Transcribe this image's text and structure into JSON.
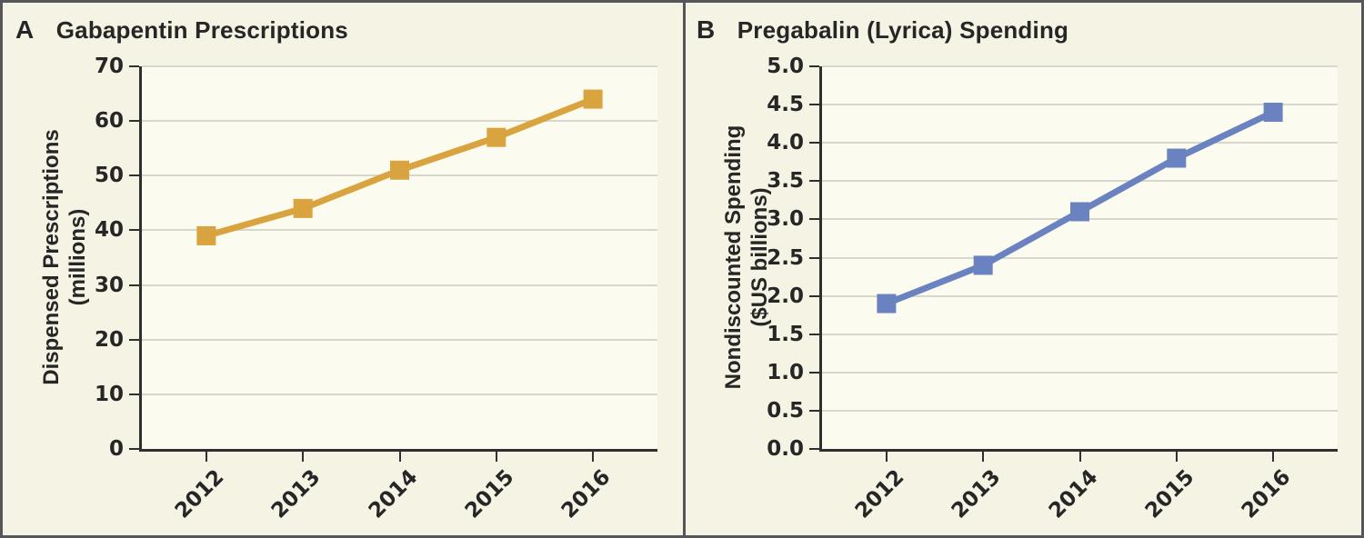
{
  "figure": {
    "panels": [
      {
        "label": "A",
        "title": "Gabapentin Prescriptions"
      },
      {
        "label": "B",
        "title": "Pregabalin (Lyrica) Spending"
      }
    ]
  },
  "colors": {
    "background": "#f5f3e4",
    "plot_background": "#fcfbef",
    "border": "#55565a",
    "axis": "#2f2f2f",
    "gridline": "#d8d7ce",
    "text": "#262626",
    "gabapentin_line": "#d9a43f",
    "pregabalin_line": "#6a82bf"
  },
  "chart_data": [
    {
      "type": "line",
      "panel_label": "A",
      "title": "Gabapentin Prescriptions",
      "x": [
        2012,
        2013,
        2014,
        2015,
        2016
      ],
      "values": [
        39,
        44,
        51,
        57,
        64
      ],
      "xlabel": "",
      "ylabel": "Dispensed Prescriptions (millions)",
      "ylabel_lines": [
        "Dispensed Prescriptions",
        "(millions)"
      ],
      "ylim": [
        0,
        70
      ],
      "ytick_step": 10,
      "ytick_decimals": 0,
      "grid": true,
      "legend": "none",
      "line_color": "#d9a43f",
      "marker": "square"
    },
    {
      "type": "line",
      "panel_label": "B",
      "title": "Pregabalin (Lyrica) Spending",
      "x": [
        2012,
        2013,
        2014,
        2015,
        2016
      ],
      "values": [
        1.9,
        2.4,
        3.1,
        3.8,
        4.4
      ],
      "xlabel": "",
      "ylabel": "Nondiscounted Spending ($US billions)",
      "ylabel_lines": [
        "Nondiscounted Spending",
        "($US billions)"
      ],
      "ylim": [
        0.0,
        5.0
      ],
      "ytick_step": 0.5,
      "ytick_decimals": 1,
      "grid": true,
      "legend": "none",
      "line_color": "#6a82bf",
      "marker": "square"
    }
  ]
}
